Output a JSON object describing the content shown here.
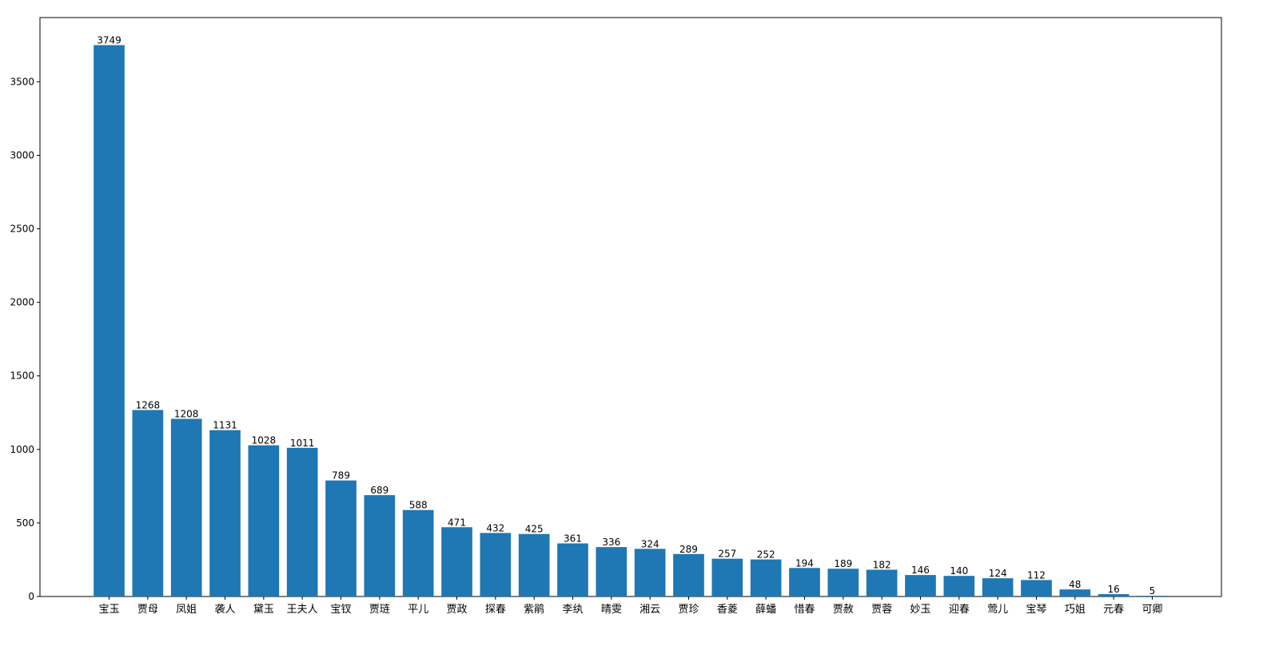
{
  "chart_data": {
    "type": "bar",
    "categories": [
      "宝玉",
      "贾母",
      "凤姐",
      "袭人",
      "黛玉",
      "王夫人",
      "宝钗",
      "贾琏",
      "平儿",
      "贾政",
      "探春",
      "紫鹃",
      "李纨",
      "晴雯",
      "湘云",
      "贾珍",
      "香菱",
      "薛蟠",
      "惜春",
      "贾赦",
      "贾蓉",
      "妙玉",
      "迎春",
      "莺儿",
      "宝琴",
      "巧姐",
      "元春",
      "可卿"
    ],
    "values": [
      3749,
      1268,
      1208,
      1131,
      1028,
      1011,
      789,
      689,
      588,
      471,
      432,
      425,
      361,
      336,
      324,
      289,
      257,
      252,
      194,
      189,
      182,
      146,
      140,
      124,
      112,
      48,
      16,
      5
    ],
    "color": "#1f77b4",
    "ylim": [
      0,
      3936.45
    ],
    "yticks": [
      0,
      500,
      1000,
      1500,
      2000,
      2500,
      3000,
      3500
    ]
  }
}
